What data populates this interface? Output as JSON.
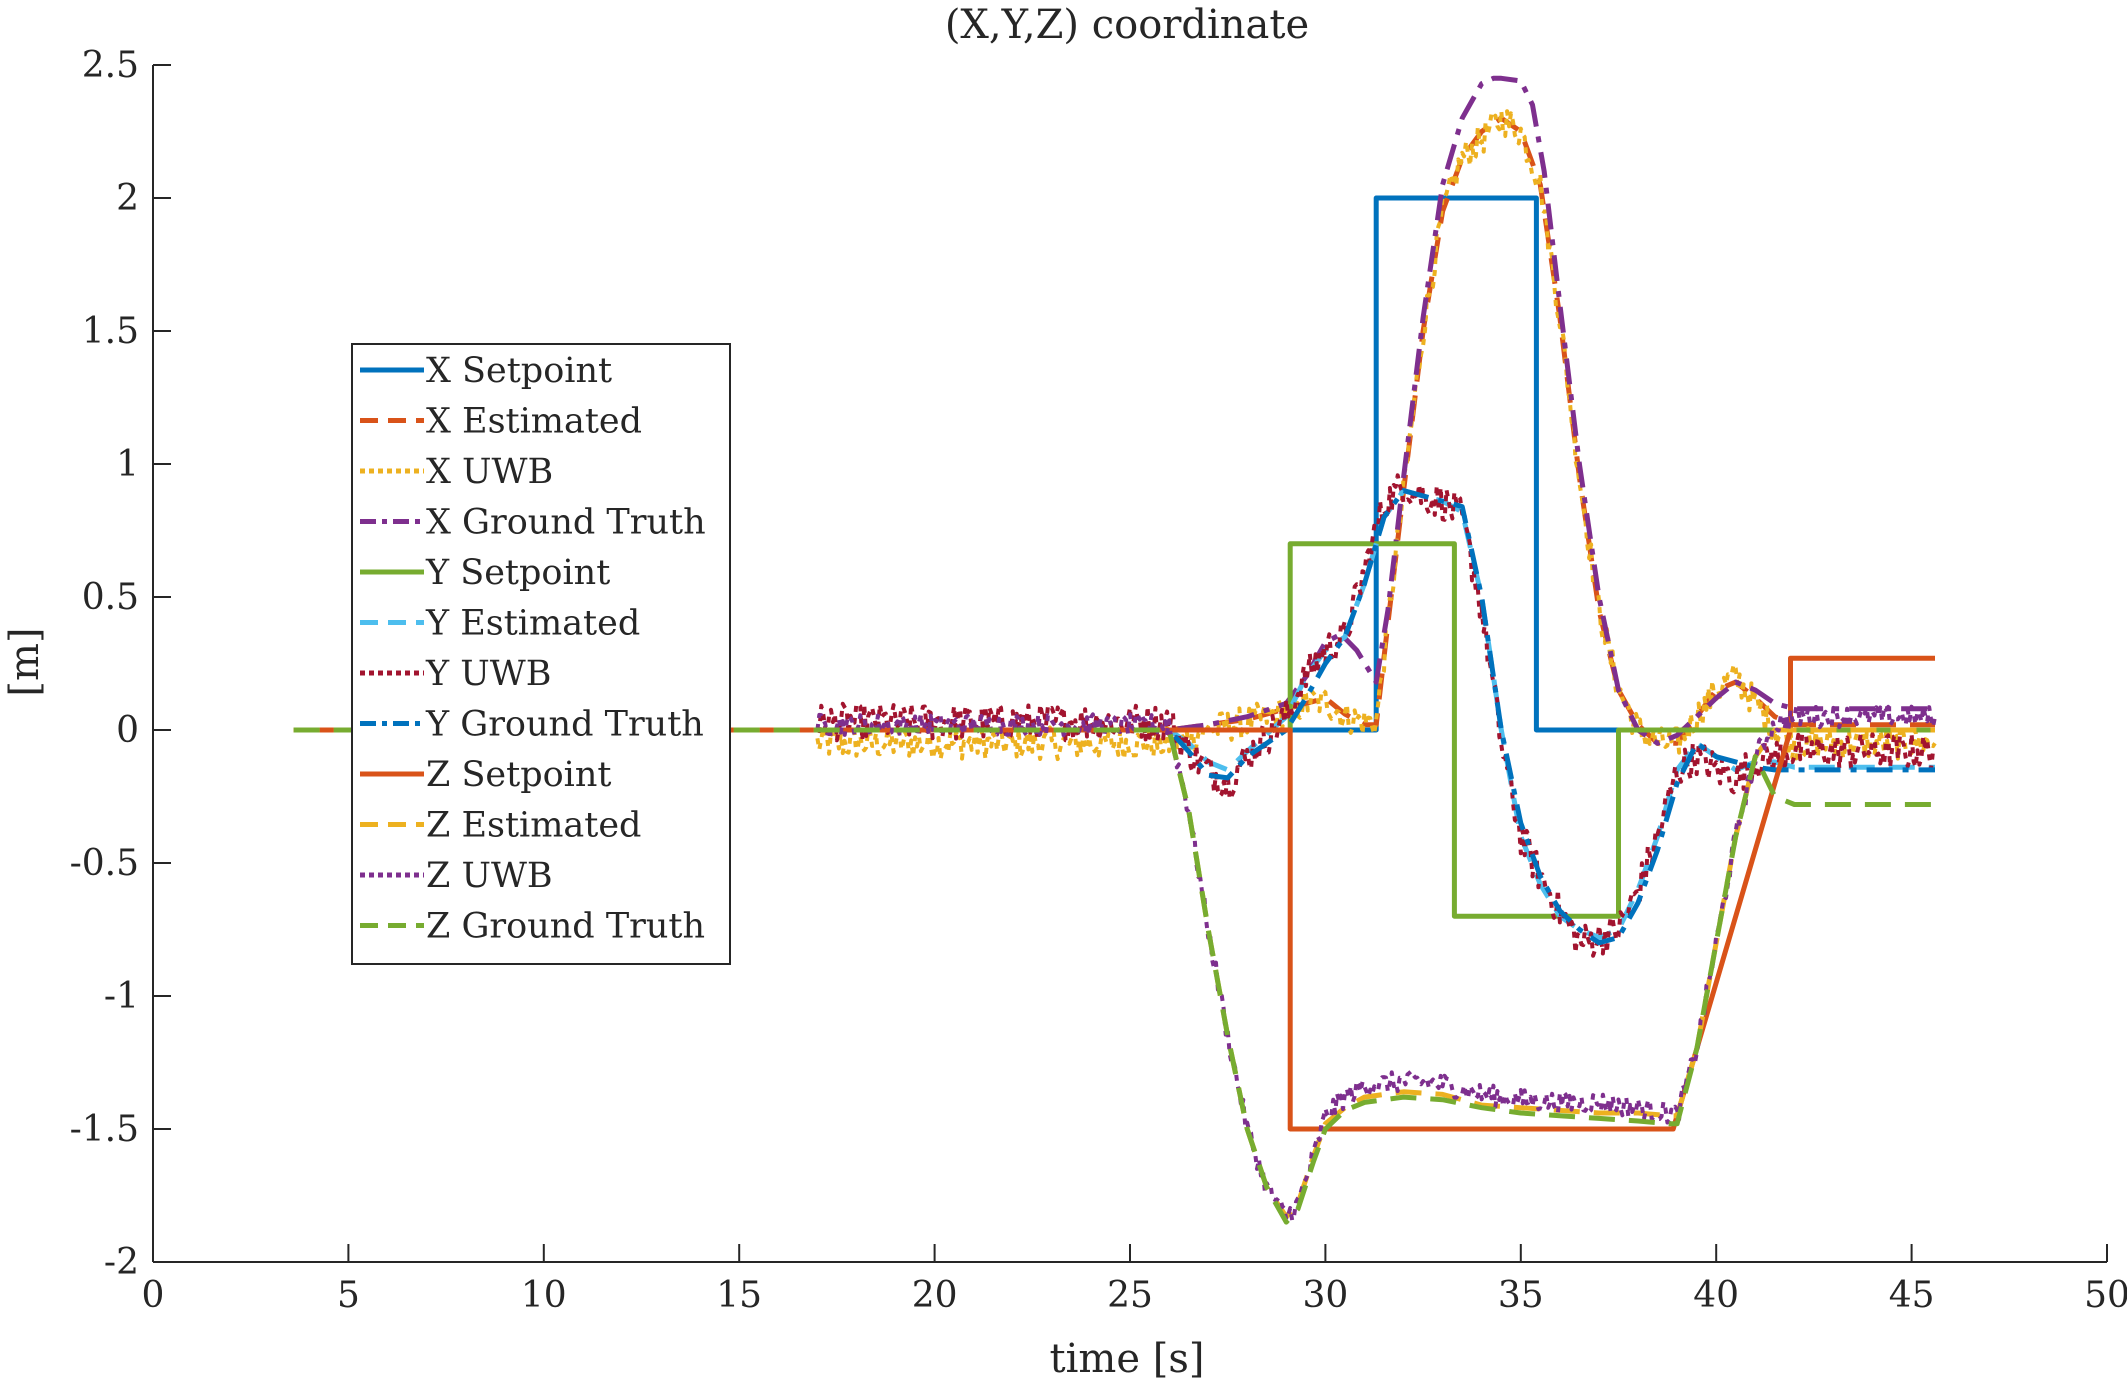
{
  "chart_data": {
    "type": "line",
    "title": "(X,Y,Z) coordinate",
    "xlabel": "time [s]",
    "ylabel": "[m]",
    "xlim": [
      0,
      50
    ],
    "ylim": [
      -2,
      2.5
    ],
    "xticks": [
      0,
      5,
      10,
      15,
      20,
      25,
      30,
      35,
      40,
      45,
      50
    ],
    "yticks": [
      2.5,
      2,
      1.5,
      1,
      0.5,
      0,
      -0.5,
      -1,
      -1.5,
      -2
    ],
    "xtick_labels": [
      "0",
      "5",
      "10",
      "15",
      "20",
      "25",
      "30",
      "35",
      "40",
      "45",
      "50"
    ],
    "ytick_labels": [
      "2.5",
      "2",
      "1.5",
      "1",
      "0.5",
      "0",
      "-0.5",
      "-1",
      "-1.5",
      "-2"
    ],
    "grid": false,
    "legend_position": "middle-left",
    "series": [
      {
        "name": "X Setpoint",
        "color": "#0072BD",
        "dash": "solid",
        "noise": 0,
        "step": true,
        "x": [
          3.6,
          31.3,
          31.3,
          35.4,
          35.4,
          45.6
        ],
        "y": [
          0,
          0,
          2,
          2,
          0,
          0
        ]
      },
      {
        "name": "X Estimated",
        "color": "#D95319",
        "dash": "dashed",
        "noise": 0,
        "step": false,
        "x": [
          3.6,
          26.0,
          27.0,
          28.0,
          29.0,
          29.5,
          30.0,
          30.5,
          31.0,
          31.3,
          31.6,
          32.0,
          32.5,
          33.0,
          33.5,
          34.0,
          34.5,
          35.0,
          35.5,
          36.0,
          36.5,
          37.0,
          37.5,
          38.0,
          38.5,
          39.0,
          39.5,
          40.0,
          40.5,
          41.0,
          41.5,
          42.0,
          45.6
        ],
        "y": [
          0,
          0,
          0.02,
          0.04,
          0.08,
          0.1,
          0.12,
          0.06,
          0.02,
          0.02,
          0.4,
          0.9,
          1.5,
          1.95,
          2.15,
          2.25,
          2.3,
          2.25,
          2.05,
          1.55,
          0.95,
          0.45,
          0.15,
          0.02,
          -0.05,
          -0.05,
          0.05,
          0.15,
          0.18,
          0.12,
          0.05,
          0.02,
          0.02
        ]
      },
      {
        "name": "X UWB",
        "color": "#EDB120",
        "dash": "dotted",
        "noise": 0.06,
        "step": false,
        "x": [
          17.0,
          26.0,
          27.0,
          28.0,
          29.0,
          29.5,
          30.0,
          30.5,
          31.0,
          31.3,
          31.6,
          32.0,
          32.5,
          33.0,
          33.5,
          34.0,
          34.5,
          35.0,
          35.5,
          36.0,
          36.5,
          37.0,
          37.5,
          38.0,
          38.5,
          39.0,
          39.5,
          40.0,
          40.5,
          41.0,
          41.5,
          42.0,
          45.6
        ],
        "y": [
          -0.05,
          -0.05,
          0.0,
          0.03,
          0.07,
          0.1,
          0.11,
          0.05,
          0.03,
          0.03,
          0.4,
          0.9,
          1.5,
          1.95,
          2.15,
          2.22,
          2.3,
          2.25,
          2.05,
          1.55,
          0.95,
          0.45,
          0.15,
          0.0,
          -0.05,
          -0.05,
          0.05,
          0.15,
          0.2,
          0.1,
          0.0,
          -0.05,
          -0.05
        ]
      },
      {
        "name": "X Ground Truth",
        "color": "#7E2F8E",
        "dash": "dashdot",
        "noise": 0,
        "step": false,
        "x": [
          3.6,
          26.0,
          27.0,
          28.0,
          29.0,
          29.5,
          30.0,
          30.4,
          30.8,
          31.3,
          31.6,
          32.0,
          32.5,
          33.0,
          33.5,
          34.0,
          34.3,
          34.5,
          35.0,
          35.3,
          35.6,
          36.0,
          36.5,
          37.0,
          37.5,
          38.0,
          38.5,
          39.0,
          39.5,
          40.0,
          40.5,
          41.0,
          41.5,
          42.0,
          45.6
        ],
        "y": [
          0,
          0,
          0.02,
          0.05,
          0.1,
          0.2,
          0.33,
          0.36,
          0.3,
          0.18,
          0.45,
          0.95,
          1.55,
          2.05,
          2.3,
          2.43,
          2.45,
          2.45,
          2.44,
          2.35,
          2.1,
          1.6,
          1.0,
          0.5,
          0.15,
          0.0,
          -0.05,
          -0.02,
          0.05,
          0.12,
          0.18,
          0.15,
          0.1,
          0.08,
          0.08
        ]
      },
      {
        "name": "Y Setpoint",
        "color": "#77AC30",
        "dash": "solid",
        "noise": 0,
        "step": true,
        "x": [
          3.6,
          29.1,
          29.1,
          33.3,
          33.3,
          37.5,
          37.5,
          45.6
        ],
        "y": [
          0,
          0,
          0.7,
          0.7,
          -0.7,
          -0.7,
          0,
          0
        ]
      },
      {
        "name": "Y Estimated",
        "color": "#4DBEEE",
        "dash": "dashed",
        "noise": 0,
        "step": false,
        "x": [
          3.6,
          26.0,
          26.5,
          27.0,
          27.5,
          28.0,
          29.0,
          29.5,
          30.0,
          30.5,
          31.0,
          31.5,
          32.0,
          32.5,
          33.0,
          33.5,
          34.0,
          34.5,
          35.0,
          35.5,
          36.0,
          36.5,
          37.0,
          37.5,
          38.0,
          38.5,
          39.0,
          39.5,
          40.0,
          40.5,
          41.0,
          41.5,
          42.0,
          45.6
        ],
        "y": [
          0,
          0,
          -0.05,
          -0.12,
          -0.15,
          -0.08,
          0.05,
          0.2,
          0.3,
          0.35,
          0.55,
          0.8,
          0.9,
          0.88,
          0.86,
          0.82,
          0.5,
          0.0,
          -0.4,
          -0.58,
          -0.7,
          -0.75,
          -0.78,
          -0.75,
          -0.6,
          -0.4,
          -0.15,
          -0.05,
          -0.1,
          -0.15,
          -0.12,
          -0.12,
          -0.14,
          -0.14
        ]
      },
      {
        "name": "Y UWB",
        "color": "#A2142F",
        "dash": "dotted",
        "noise": 0.07,
        "step": false,
        "x": [
          17.0,
          26.0,
          26.5,
          27.0,
          27.5,
          28.0,
          29.0,
          29.5,
          30.0,
          30.5,
          31.0,
          31.5,
          32.0,
          32.5,
          33.0,
          33.5,
          34.0,
          34.5,
          35.0,
          35.5,
          36.0,
          36.5,
          37.0,
          37.5,
          38.0,
          38.5,
          39.0,
          39.5,
          40.0,
          40.5,
          41.0,
          41.5,
          42.0,
          45.6
        ],
        "y": [
          0.03,
          0.03,
          -0.08,
          -0.15,
          -0.2,
          -0.1,
          0.05,
          0.2,
          0.3,
          0.35,
          0.6,
          0.85,
          0.92,
          0.88,
          0.86,
          0.8,
          0.45,
          -0.05,
          -0.4,
          -0.55,
          -0.68,
          -0.8,
          -0.78,
          -0.75,
          -0.6,
          -0.4,
          -0.15,
          -0.1,
          -0.15,
          -0.18,
          -0.12,
          -0.1,
          -0.08,
          -0.08
        ]
      },
      {
        "name": "Y Ground Truth",
        "color": "#0072BD",
        "dash": "dashdot",
        "noise": 0,
        "step": false,
        "x": [
          3.6,
          26.0,
          26.5,
          27.0,
          27.5,
          28.0,
          29.0,
          29.5,
          30.0,
          30.5,
          31.0,
          31.5,
          32.0,
          32.5,
          33.0,
          33.5,
          34.0,
          34.5,
          35.0,
          35.5,
          36.0,
          36.5,
          37.0,
          37.5,
          38.0,
          38.5,
          39.0,
          39.5,
          40.0,
          40.5,
          41.0,
          41.5,
          42.0,
          45.6
        ],
        "y": [
          0,
          0,
          -0.08,
          -0.17,
          -0.18,
          -0.1,
          0.0,
          0.12,
          0.25,
          0.35,
          0.55,
          0.8,
          0.9,
          0.88,
          0.86,
          0.84,
          0.5,
          0.0,
          -0.35,
          -0.55,
          -0.68,
          -0.75,
          -0.8,
          -0.78,
          -0.65,
          -0.45,
          -0.2,
          -0.05,
          -0.1,
          -0.12,
          -0.14,
          -0.15,
          -0.15,
          -0.15
        ]
      },
      {
        "name": "Z Setpoint",
        "color": "#D95319",
        "dash": "solid",
        "noise": 0,
        "step": true,
        "x": [
          3.6,
          29.1,
          29.1,
          38.9,
          41.9,
          41.9,
          45.6
        ],
        "y": [
          0,
          0,
          -1.5,
          -1.5,
          0,
          0.27,
          0.27
        ]
      },
      {
        "name": "Z Estimated",
        "color": "#EDB120",
        "dash": "dashed",
        "noise": 0,
        "step": false,
        "x": [
          3.6,
          26.0,
          26.5,
          27.0,
          27.5,
          28.0,
          28.5,
          29.0,
          29.3,
          29.7,
          30.0,
          30.5,
          31.0,
          32.0,
          33.0,
          34.0,
          35.0,
          36.0,
          37.0,
          38.0,
          38.8,
          39.0,
          39.5,
          40.0,
          40.5,
          41.0,
          41.5,
          42.0,
          45.6
        ],
        "y": [
          0,
          0,
          -0.3,
          -0.75,
          -1.15,
          -1.5,
          -1.72,
          -1.83,
          -1.78,
          -1.6,
          -1.48,
          -1.42,
          -1.38,
          -1.36,
          -1.37,
          -1.41,
          -1.42,
          -1.43,
          -1.44,
          -1.44,
          -1.45,
          -1.45,
          -1.2,
          -0.8,
          -0.4,
          -0.1,
          0.0,
          0.0,
          0.0
        ]
      },
      {
        "name": "Z UWB",
        "color": "#7E2F8E",
        "dash": "dotted",
        "noise": 0.04,
        "step": false,
        "x": [
          17.0,
          26.0,
          26.5,
          27.0,
          27.5,
          28.0,
          28.5,
          29.0,
          29.3,
          29.7,
          30.0,
          30.5,
          31.0,
          32.0,
          33.0,
          34.0,
          35.0,
          36.0,
          37.0,
          38.0,
          38.8,
          39.0,
          39.5,
          40.0,
          40.5,
          41.0,
          41.5,
          42.0,
          45.6
        ],
        "y": [
          0.02,
          0.02,
          -0.3,
          -0.75,
          -1.15,
          -1.5,
          -1.72,
          -1.83,
          -1.78,
          -1.6,
          -1.45,
          -1.38,
          -1.34,
          -1.32,
          -1.33,
          -1.37,
          -1.39,
          -1.4,
          -1.4,
          -1.42,
          -1.44,
          -1.45,
          -1.2,
          -0.8,
          -0.4,
          -0.1,
          0.02,
          0.05,
          0.05
        ]
      },
      {
        "name": "Z Ground Truth",
        "color": "#77AC30",
        "dash": "dashed",
        "noise": 0,
        "step": false,
        "x": [
          3.6,
          26.0,
          26.5,
          27.0,
          27.5,
          28.0,
          28.5,
          29.0,
          29.3,
          29.7,
          30.0,
          30.5,
          31.0,
          32.0,
          33.0,
          34.0,
          35.0,
          36.0,
          37.0,
          38.0,
          38.8,
          39.0,
          39.5,
          40.0,
          40.5,
          41.0,
          41.5,
          42.0,
          45.6
        ],
        "y": [
          0,
          0,
          -0.3,
          -0.75,
          -1.15,
          -1.5,
          -1.72,
          -1.85,
          -1.8,
          -1.62,
          -1.5,
          -1.43,
          -1.4,
          -1.38,
          -1.39,
          -1.42,
          -1.44,
          -1.45,
          -1.46,
          -1.47,
          -1.48,
          -1.48,
          -1.2,
          -0.8,
          -0.4,
          -0.1,
          -0.25,
          -0.28,
          -0.28
        ]
      }
    ]
  }
}
